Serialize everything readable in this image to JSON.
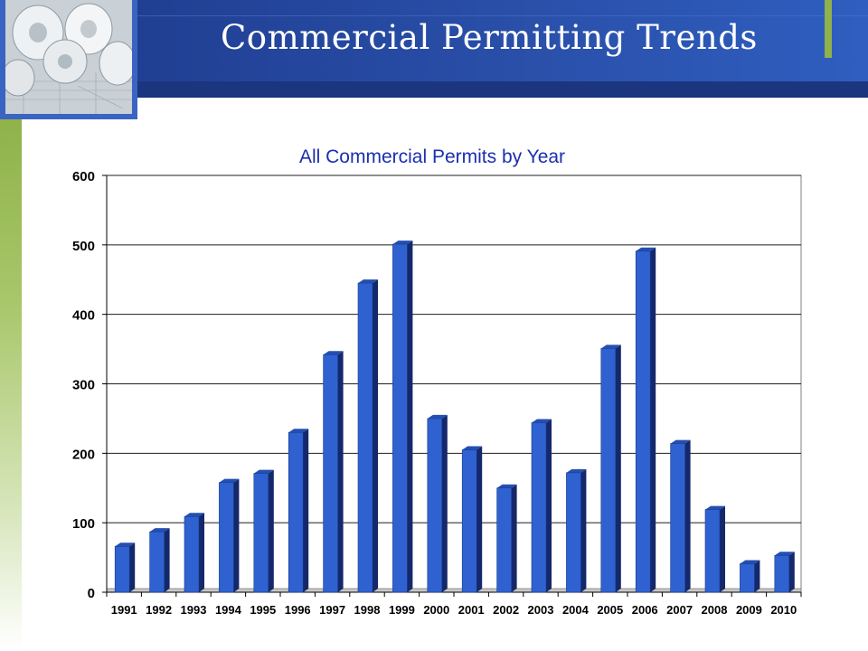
{
  "slide": {
    "title": "Commercial Permitting Trends"
  },
  "colors": {
    "header": "#1f3d8f",
    "accent_green": "#8fb24a",
    "bar_fill": "#2f62d0",
    "bar_side": "#14286b",
    "chart_title": "#1a2fb0"
  },
  "chart_data": {
    "type": "bar",
    "title": "All Commercial Permits by Year",
    "xlabel": "",
    "ylabel": "",
    "ylim": [
      0,
      600
    ],
    "yticks": [
      "0",
      "100",
      "200",
      "300",
      "400",
      "500",
      "600"
    ],
    "categories": [
      "1991",
      "1992",
      "1993",
      "1994",
      "1995",
      "1996",
      "1997",
      "1998",
      "1999",
      "2000",
      "2001",
      "2002",
      "2003",
      "2004",
      "2005",
      "2006",
      "2007",
      "2008",
      "2009",
      "2010"
    ],
    "values": [
      66,
      87,
      109,
      158,
      171,
      230,
      342,
      445,
      501,
      250,
      205,
      150,
      244,
      172,
      351,
      491,
      214,
      119,
      41,
      53
    ],
    "grid": true,
    "legend": "none"
  }
}
